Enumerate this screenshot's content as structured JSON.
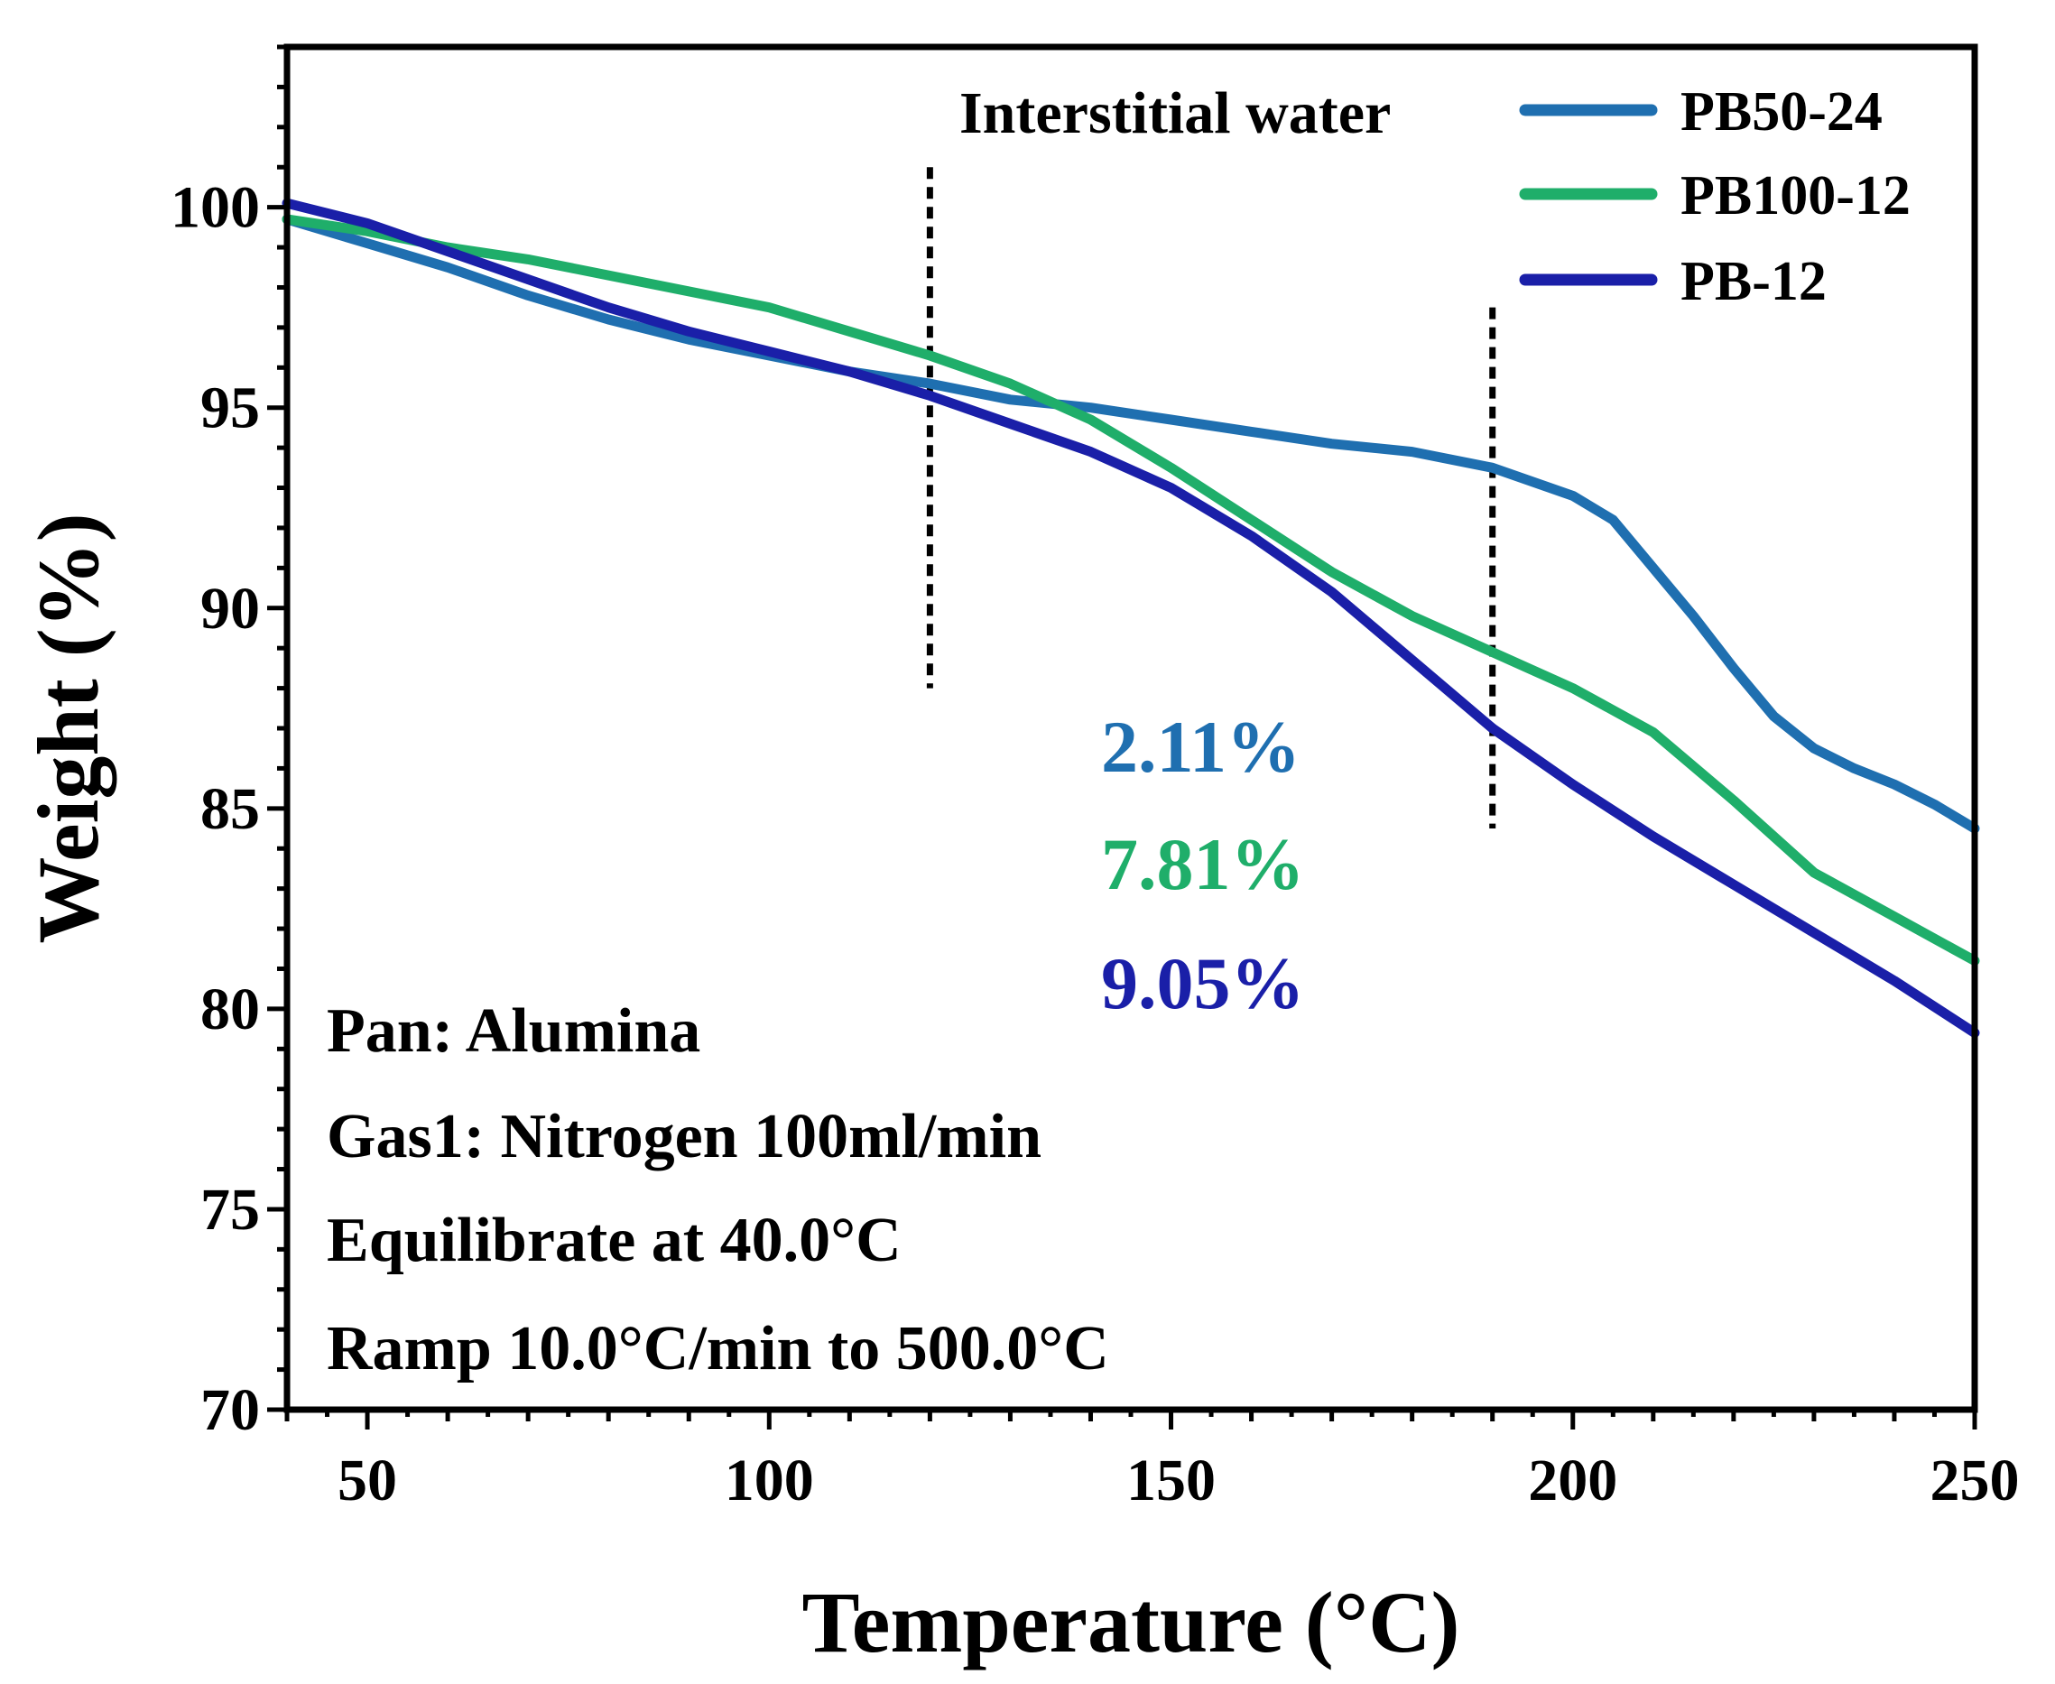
{
  "chart_data": {
    "type": "line",
    "xlabel": "Temperature (°C)",
    "ylabel": "Weight (%)",
    "xlim": [
      40,
      250
    ],
    "ylim": [
      70,
      104
    ],
    "x_ticks": [
      50,
      100,
      150,
      200,
      250
    ],
    "y_ticks": [
      70,
      75,
      80,
      85,
      90,
      95,
      100
    ],
    "legend_position": "top-right",
    "series": [
      {
        "name": "PB50-24",
        "color": "#1f6fb0",
        "x": [
          40,
          50,
          60,
          70,
          80,
          90,
          100,
          110,
          120,
          130,
          140,
          150,
          160,
          170,
          180,
          190,
          200,
          205,
          210,
          215,
          220,
          225,
          230,
          235,
          240,
          245,
          250
        ],
        "y": [
          99.7,
          99.1,
          98.5,
          97.8,
          97.2,
          96.7,
          96.3,
          95.9,
          95.6,
          95.2,
          95.0,
          94.7,
          94.4,
          94.1,
          93.9,
          93.5,
          92.8,
          92.2,
          91.0,
          89.8,
          88.5,
          87.3,
          86.5,
          86.0,
          85.6,
          85.1,
          84.5
        ]
      },
      {
        "name": "PB100-12",
        "color": "#1fae6a",
        "x": [
          40,
          50,
          60,
          70,
          80,
          90,
          100,
          110,
          120,
          130,
          140,
          150,
          160,
          170,
          180,
          190,
          200,
          210,
          220,
          230,
          240,
          250
        ],
        "y": [
          99.7,
          99.4,
          99.0,
          98.7,
          98.3,
          97.9,
          97.5,
          96.9,
          96.3,
          95.6,
          94.7,
          93.5,
          92.2,
          90.9,
          89.8,
          88.9,
          88.0,
          86.9,
          85.2,
          83.4,
          82.3,
          81.2
        ]
      },
      {
        "name": "PB-12",
        "color": "#1a1fa8",
        "x": [
          40,
          50,
          60,
          70,
          80,
          90,
          100,
          110,
          120,
          130,
          140,
          150,
          160,
          170,
          180,
          190,
          200,
          210,
          220,
          230,
          240,
          250
        ],
        "y": [
          100.1,
          99.6,
          98.9,
          98.2,
          97.5,
          96.9,
          96.4,
          95.9,
          95.3,
          94.6,
          93.9,
          93.0,
          91.8,
          90.4,
          88.7,
          87.0,
          85.6,
          84.3,
          83.1,
          81.9,
          80.7,
          79.4
        ]
      }
    ],
    "annotations": {
      "interstitial_label": "Interstitial water",
      "vertical_dotted_lines": [
        {
          "x": 120,
          "y_from": 88,
          "y_to": 101
        },
        {
          "x": 190,
          "y_from": 84.5,
          "y_to": 97.5
        }
      ],
      "percentages": [
        {
          "text": "2.11%",
          "color": "#1f6fb0"
        },
        {
          "text": "7.81%",
          "color": "#1fae6a"
        },
        {
          "text": "9.05%",
          "color": "#1a1fa8"
        }
      ],
      "conditions": [
        "Pan: Alumina",
        "Gas1: Nitrogen 100ml/min",
        "Equilibrate at 40.0°C",
        "Ramp 10.0°C/min to 500.0°C"
      ]
    }
  }
}
